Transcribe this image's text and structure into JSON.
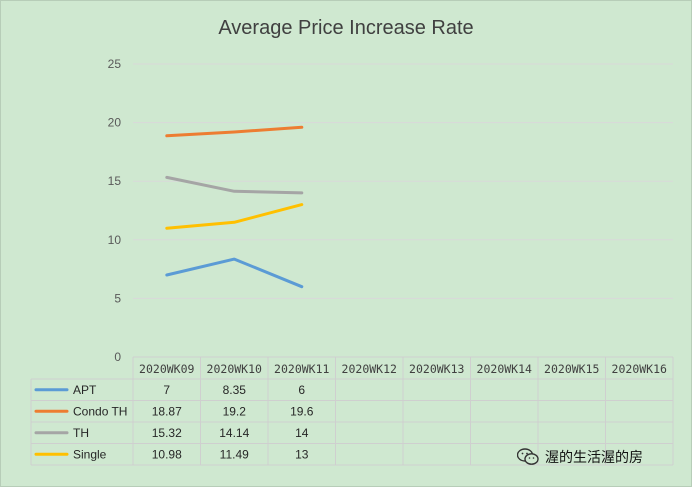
{
  "chart_data": {
    "type": "line",
    "title": "Average Price Increase Rate",
    "xlabel": "",
    "ylabel": "",
    "categories": [
      "2020WK09",
      "2020WK10",
      "2020WK11",
      "2020WK12",
      "2020WK13",
      "2020WK14",
      "2020WK15",
      "2020WK16"
    ],
    "ylim": [
      0,
      25
    ],
    "yticks": [
      0,
      5,
      10,
      15,
      20,
      25
    ],
    "grid": true,
    "data_table": true,
    "series": [
      {
        "name": "APT",
        "color": "#5b9bd5",
        "values": [
          7,
          8.35,
          6,
          null,
          null,
          null,
          null,
          null
        ]
      },
      {
        "name": "Condo TH",
        "color": "#ed7d31",
        "values": [
          18.87,
          19.2,
          19.6,
          null,
          null,
          null,
          null,
          null
        ]
      },
      {
        "name": "TH",
        "color": "#a5a5a5",
        "values": [
          15.32,
          14.14,
          14,
          null,
          null,
          null,
          null,
          null
        ]
      },
      {
        "name": "Single",
        "color": "#ffc000",
        "values": [
          10.98,
          11.49,
          13,
          null,
          null,
          null,
          null,
          null
        ]
      }
    ]
  },
  "watermark": {
    "icon": "wechat-icon",
    "text": "渥的生活渥的房"
  }
}
